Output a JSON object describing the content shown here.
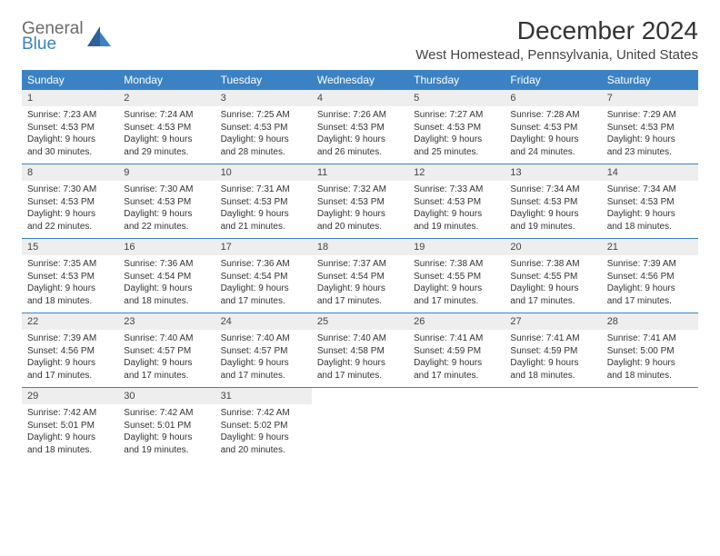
{
  "logo": {
    "text1": "General",
    "text2": "Blue"
  },
  "title": "December 2024",
  "location": "West Homestead, Pennsylvania, United States",
  "header_color": "#3b82c4",
  "daynum_bg": "#eeeeee",
  "border_color": "#3b82c4",
  "weekdays": [
    "Sunday",
    "Monday",
    "Tuesday",
    "Wednesday",
    "Thursday",
    "Friday",
    "Saturday"
  ],
  "weeks": [
    [
      {
        "n": "1",
        "sr": "Sunrise: 7:23 AM",
        "ss": "Sunset: 4:53 PM",
        "d1": "Daylight: 9 hours",
        "d2": "and 30 minutes."
      },
      {
        "n": "2",
        "sr": "Sunrise: 7:24 AM",
        "ss": "Sunset: 4:53 PM",
        "d1": "Daylight: 9 hours",
        "d2": "and 29 minutes."
      },
      {
        "n": "3",
        "sr": "Sunrise: 7:25 AM",
        "ss": "Sunset: 4:53 PM",
        "d1": "Daylight: 9 hours",
        "d2": "and 28 minutes."
      },
      {
        "n": "4",
        "sr": "Sunrise: 7:26 AM",
        "ss": "Sunset: 4:53 PM",
        "d1": "Daylight: 9 hours",
        "d2": "and 26 minutes."
      },
      {
        "n": "5",
        "sr": "Sunrise: 7:27 AM",
        "ss": "Sunset: 4:53 PM",
        "d1": "Daylight: 9 hours",
        "d2": "and 25 minutes."
      },
      {
        "n": "6",
        "sr": "Sunrise: 7:28 AM",
        "ss": "Sunset: 4:53 PM",
        "d1": "Daylight: 9 hours",
        "d2": "and 24 minutes."
      },
      {
        "n": "7",
        "sr": "Sunrise: 7:29 AM",
        "ss": "Sunset: 4:53 PM",
        "d1": "Daylight: 9 hours",
        "d2": "and 23 minutes."
      }
    ],
    [
      {
        "n": "8",
        "sr": "Sunrise: 7:30 AM",
        "ss": "Sunset: 4:53 PM",
        "d1": "Daylight: 9 hours",
        "d2": "and 22 minutes."
      },
      {
        "n": "9",
        "sr": "Sunrise: 7:30 AM",
        "ss": "Sunset: 4:53 PM",
        "d1": "Daylight: 9 hours",
        "d2": "and 22 minutes."
      },
      {
        "n": "10",
        "sr": "Sunrise: 7:31 AM",
        "ss": "Sunset: 4:53 PM",
        "d1": "Daylight: 9 hours",
        "d2": "and 21 minutes."
      },
      {
        "n": "11",
        "sr": "Sunrise: 7:32 AM",
        "ss": "Sunset: 4:53 PM",
        "d1": "Daylight: 9 hours",
        "d2": "and 20 minutes."
      },
      {
        "n": "12",
        "sr": "Sunrise: 7:33 AM",
        "ss": "Sunset: 4:53 PM",
        "d1": "Daylight: 9 hours",
        "d2": "and 19 minutes."
      },
      {
        "n": "13",
        "sr": "Sunrise: 7:34 AM",
        "ss": "Sunset: 4:53 PM",
        "d1": "Daylight: 9 hours",
        "d2": "and 19 minutes."
      },
      {
        "n": "14",
        "sr": "Sunrise: 7:34 AM",
        "ss": "Sunset: 4:53 PM",
        "d1": "Daylight: 9 hours",
        "d2": "and 18 minutes."
      }
    ],
    [
      {
        "n": "15",
        "sr": "Sunrise: 7:35 AM",
        "ss": "Sunset: 4:53 PM",
        "d1": "Daylight: 9 hours",
        "d2": "and 18 minutes."
      },
      {
        "n": "16",
        "sr": "Sunrise: 7:36 AM",
        "ss": "Sunset: 4:54 PM",
        "d1": "Daylight: 9 hours",
        "d2": "and 18 minutes."
      },
      {
        "n": "17",
        "sr": "Sunrise: 7:36 AM",
        "ss": "Sunset: 4:54 PM",
        "d1": "Daylight: 9 hours",
        "d2": "and 17 minutes."
      },
      {
        "n": "18",
        "sr": "Sunrise: 7:37 AM",
        "ss": "Sunset: 4:54 PM",
        "d1": "Daylight: 9 hours",
        "d2": "and 17 minutes."
      },
      {
        "n": "19",
        "sr": "Sunrise: 7:38 AM",
        "ss": "Sunset: 4:55 PM",
        "d1": "Daylight: 9 hours",
        "d2": "and 17 minutes."
      },
      {
        "n": "20",
        "sr": "Sunrise: 7:38 AM",
        "ss": "Sunset: 4:55 PM",
        "d1": "Daylight: 9 hours",
        "d2": "and 17 minutes."
      },
      {
        "n": "21",
        "sr": "Sunrise: 7:39 AM",
        "ss": "Sunset: 4:56 PM",
        "d1": "Daylight: 9 hours",
        "d2": "and 17 minutes."
      }
    ],
    [
      {
        "n": "22",
        "sr": "Sunrise: 7:39 AM",
        "ss": "Sunset: 4:56 PM",
        "d1": "Daylight: 9 hours",
        "d2": "and 17 minutes."
      },
      {
        "n": "23",
        "sr": "Sunrise: 7:40 AM",
        "ss": "Sunset: 4:57 PM",
        "d1": "Daylight: 9 hours",
        "d2": "and 17 minutes."
      },
      {
        "n": "24",
        "sr": "Sunrise: 7:40 AM",
        "ss": "Sunset: 4:57 PM",
        "d1": "Daylight: 9 hours",
        "d2": "and 17 minutes."
      },
      {
        "n": "25",
        "sr": "Sunrise: 7:40 AM",
        "ss": "Sunset: 4:58 PM",
        "d1": "Daylight: 9 hours",
        "d2": "and 17 minutes."
      },
      {
        "n": "26",
        "sr": "Sunrise: 7:41 AM",
        "ss": "Sunset: 4:59 PM",
        "d1": "Daylight: 9 hours",
        "d2": "and 17 minutes."
      },
      {
        "n": "27",
        "sr": "Sunrise: 7:41 AM",
        "ss": "Sunset: 4:59 PM",
        "d1": "Daylight: 9 hours",
        "d2": "and 18 minutes."
      },
      {
        "n": "28",
        "sr": "Sunrise: 7:41 AM",
        "ss": "Sunset: 5:00 PM",
        "d1": "Daylight: 9 hours",
        "d2": "and 18 minutes."
      }
    ],
    [
      {
        "n": "29",
        "sr": "Sunrise: 7:42 AM",
        "ss": "Sunset: 5:01 PM",
        "d1": "Daylight: 9 hours",
        "d2": "and 18 minutes."
      },
      {
        "n": "30",
        "sr": "Sunrise: 7:42 AM",
        "ss": "Sunset: 5:01 PM",
        "d1": "Daylight: 9 hours",
        "d2": "and 19 minutes."
      },
      {
        "n": "31",
        "sr": "Sunrise: 7:42 AM",
        "ss": "Sunset: 5:02 PM",
        "d1": "Daylight: 9 hours",
        "d2": "and 20 minutes."
      },
      {
        "empty": true
      },
      {
        "empty": true
      },
      {
        "empty": true
      },
      {
        "empty": true
      }
    ]
  ]
}
